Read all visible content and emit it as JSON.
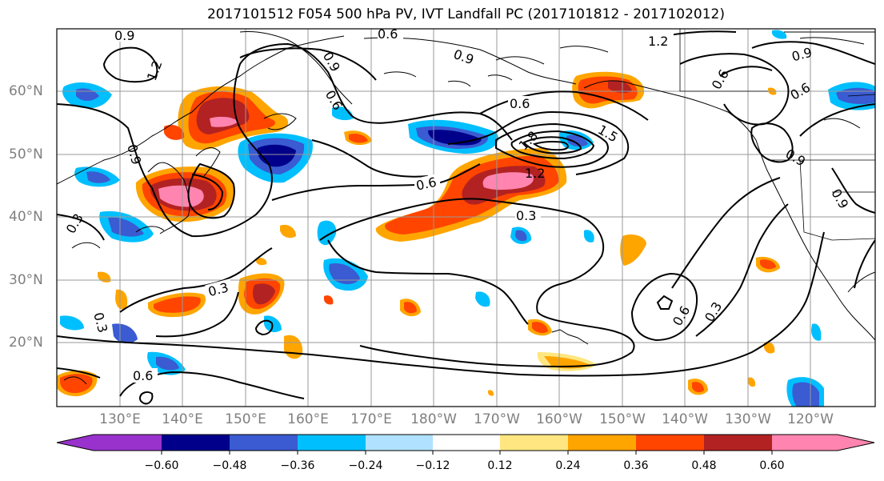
{
  "figure": {
    "title": "2017101512 F054 500 hPa PV, IVT Landfall PC (2017101812 - 2017102012)"
  },
  "map": {
    "lat_labels": [
      "60°N",
      "50°N",
      "40°N",
      "30°N",
      "20°N"
    ],
    "lon_labels": [
      "130°E",
      "140°E",
      "150°E",
      "160°E",
      "170°E",
      "180°W",
      "170°W",
      "160°W",
      "150°W",
      "140°W",
      "130°W",
      "120°W"
    ],
    "contour_labels": [
      "0.9",
      "1.2",
      "0.6",
      "1.2",
      "0.9",
      "0.9",
      "0.6",
      "0.9",
      "0.6",
      "0.6",
      "0.9",
      "1.8",
      "1.5",
      "1.2",
      "0.6",
      "0.6",
      "0.3",
      "0.3",
      "0.3",
      "0.6",
      "0.3",
      "0.6",
      "0.9",
      "0.3",
      "0.9"
    ],
    "colors": {
      "land_lines": "#000000",
      "grid": "#999999",
      "contour": "#000000"
    }
  },
  "colorbar": {
    "ticks": [
      "−0.60",
      "−0.48",
      "−0.36",
      "−0.24",
      "−0.12",
      "0.12",
      "0.24",
      "0.36",
      "0.48",
      "0.60"
    ],
    "colors": [
      "#9932cc",
      "#00008b",
      "#3a5bd1",
      "#00bfff",
      "#b0e2ff",
      "#ffffff",
      "#ffe680",
      "#ffa500",
      "#ff4500",
      "#b22222",
      "#ff85b0"
    ]
  }
}
